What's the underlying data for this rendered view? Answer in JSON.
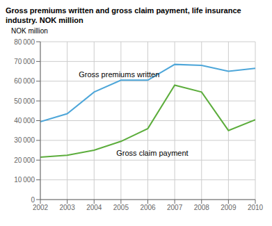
{
  "chart_data": {
    "type": "line",
    "title": "Gross premiums written and gross claim payment, life insurance\nindustry. NOK million",
    "y_label": "NOK million",
    "x": [
      2002,
      2003,
      2004,
      2005,
      2006,
      2007,
      2008,
      2009,
      2010
    ],
    "series": [
      {
        "name": "Gross premiums written",
        "color": "#4da6d9",
        "values": [
          39500,
          43500,
          54500,
          60500,
          60500,
          68500,
          68000,
          65000,
          66500
        ]
      },
      {
        "name": "Gross claim payment",
        "color": "#5cad3c",
        "values": [
          21500,
          22500,
          25000,
          29500,
          36000,
          58000,
          54500,
          35000,
          40500
        ]
      }
    ],
    "annotations": [
      {
        "text": "Gross premiums written",
        "x": 2003.3,
        "y": 63500
      },
      {
        "text": "Gross claim payment",
        "x": 2004.7,
        "y": 23500
      }
    ],
    "xlim": [
      2002,
      2010
    ],
    "xticks": [
      2002,
      2003,
      2004,
      2005,
      2006,
      2007,
      2008,
      2009,
      2010
    ],
    "ylim": [
      0,
      80000
    ],
    "yticks": [
      0,
      {
        "value": 10000,
        "label": "10 000"
      },
      {
        "value": 20000,
        "label": "20 000"
      },
      {
        "value": 30000,
        "label": "30 000"
      },
      {
        "value": 40000,
        "label": "40 000"
      },
      {
        "value": 50000,
        "label": "50 000"
      },
      {
        "value": 60000,
        "label": "60 000"
      },
      {
        "value": 70000,
        "label": "70 000"
      },
      {
        "value": 80000,
        "label": "80 000"
      }
    ],
    "grid": true
  }
}
